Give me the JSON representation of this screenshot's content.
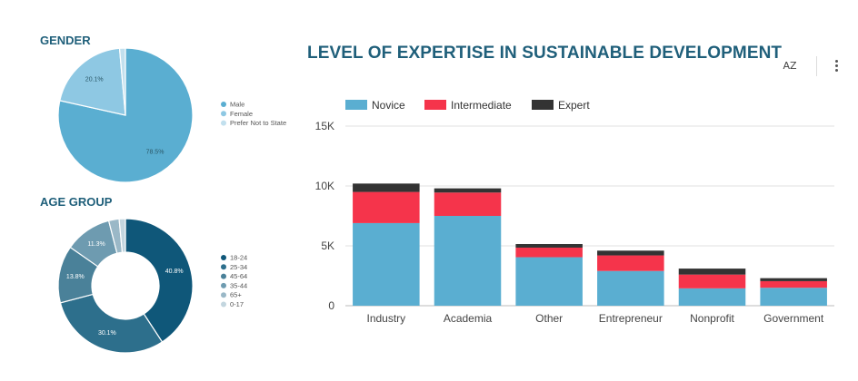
{
  "gender": {
    "title": "GENDER",
    "chart_type": "pie",
    "slices": [
      {
        "label": "Male",
        "value": 78.5,
        "display": "78.5%",
        "color": "#5aaed1"
      },
      {
        "label": "Female",
        "value": 20.1,
        "display": "20.1%",
        "color": "#8ec8e3"
      },
      {
        "label": "Prefer Not to State",
        "value": 1.4,
        "display": "",
        "color": "#c2e0ee"
      }
    ]
  },
  "age": {
    "title": "AGE GROUP",
    "chart_type": "donut",
    "slices": [
      {
        "label": "18-24",
        "value": 40.8,
        "display": "40.8%",
        "color": "#0f5779"
      },
      {
        "label": "25-34",
        "value": 30.1,
        "display": "30.1%",
        "color": "#2d6f8c"
      },
      {
        "label": "45-64",
        "value": 13.8,
        "display": "13.8%",
        "color": "#4a8199"
      },
      {
        "label": "35-44",
        "value": 11.3,
        "display": "11.3%",
        "color": "#6e9bb0"
      },
      {
        "label": "65+",
        "value": 2.5,
        "display": "",
        "color": "#9ab8c7"
      },
      {
        "label": "0-17",
        "value": 1.5,
        "display": "",
        "color": "#c3d6df"
      }
    ]
  },
  "chart_data": {
    "type": "bar",
    "stacked": true,
    "title": "LEVEL OF EXPERTISE IN SUSTAINABLE DEVELOPMENT",
    "categories": [
      "Industry",
      "Academia",
      "Other",
      "Entrepreneur",
      "Nonprofit",
      "Government"
    ],
    "series": [
      {
        "name": "Novice",
        "color": "#5aaed1",
        "values": [
          6900,
          7500,
          4050,
          2900,
          1450,
          1500
        ]
      },
      {
        "name": "Intermediate",
        "color": "#f5344b",
        "values": [
          2600,
          1950,
          800,
          1300,
          1150,
          550
        ]
      },
      {
        "name": "Expert",
        "color": "#333333",
        "values": [
          700,
          350,
          300,
          400,
          500,
          250
        ]
      }
    ],
    "yticks": [
      "0",
      "5K",
      "10K",
      "15K"
    ],
    "ytick_values": [
      0,
      5000,
      10000,
      15000
    ],
    "ylim": [
      0,
      15000
    ],
    "grid": true,
    "legend_position": "top-left"
  },
  "toolbar": {
    "sort_icon": "AZ",
    "sort_icon_name": "sort-az-icon",
    "more_icon_name": "more-vert-icon"
  }
}
